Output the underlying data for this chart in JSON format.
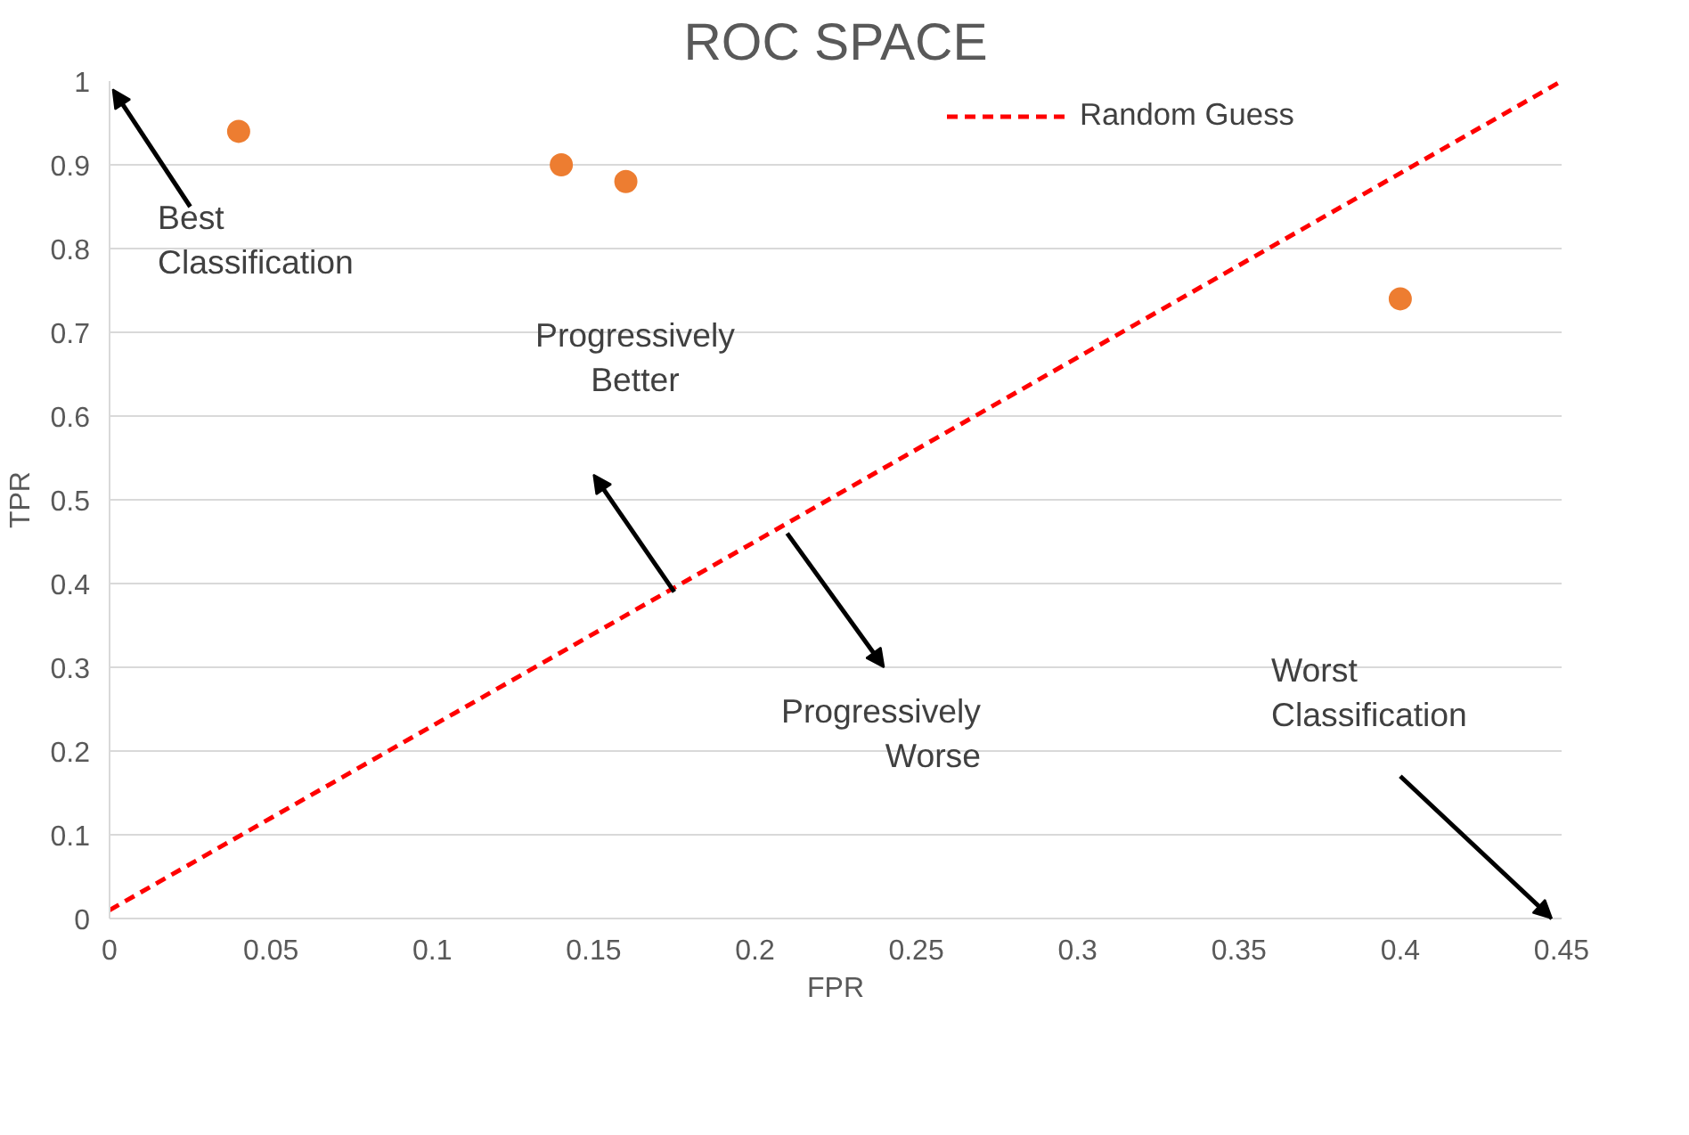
{
  "chart_data": {
    "type": "scatter",
    "title": "ROC SPACE",
    "xlabel": "FPR",
    "ylabel": "TPR",
    "xlim": [
      0,
      0.45
    ],
    "ylim": [
      0,
      1
    ],
    "xticks": [
      0,
      0.05,
      0.1,
      0.15,
      0.2,
      0.25,
      0.3,
      0.35,
      0.4,
      0.45
    ],
    "yticks": [
      0,
      0.1,
      0.2,
      0.3,
      0.4,
      0.5,
      0.6,
      0.7,
      0.8,
      0.9,
      1
    ],
    "grid": "y",
    "legend": "top right",
    "series": [
      {
        "color": "#ed7d31",
        "marker": "circle",
        "x": [
          0.04,
          0.14,
          0.16,
          0.4
        ],
        "values": [
          0.94,
          0.9,
          0.88,
          0.74
        ]
      },
      {
        "type": "line",
        "name": "Random Guess",
        "color": "#ff0000",
        "line_style": "dashed",
        "marker": "none",
        "x": [
          0,
          0.45
        ],
        "values": [
          0.01,
          1
        ]
      }
    ],
    "annotations": [
      "Best\nClassification",
      "Progressively\nBetter",
      "Progressively\nWorse",
      "Worst\nClassification"
    ]
  }
}
